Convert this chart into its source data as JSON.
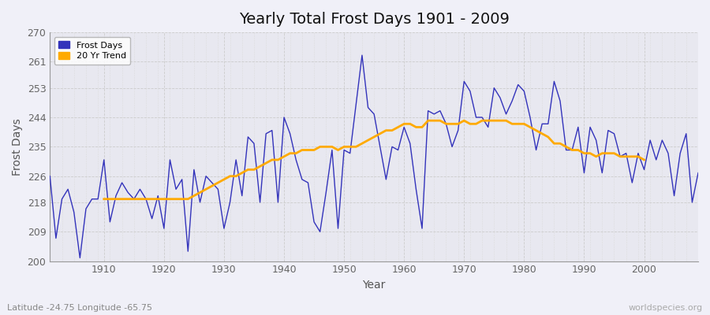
{
  "title": "Yearly Total Frost Days 1901 - 2009",
  "xlabel": "Year",
  "ylabel": "Frost Days",
  "subtitle": "Latitude -24.75 Longitude -65.75",
  "watermark": "worldspecies.org",
  "ylim": [
    200,
    270
  ],
  "yticks": [
    200,
    209,
    218,
    226,
    235,
    244,
    253,
    261,
    270
  ],
  "xlim": [
    1901,
    2009
  ],
  "background_color": "#f0f0f8",
  "plot_bg_color": "#e8e8f0",
  "line_color": "#3333bb",
  "trend_color": "#ffaa00",
  "years": [
    1901,
    1902,
    1903,
    1904,
    1905,
    1906,
    1907,
    1908,
    1909,
    1910,
    1911,
    1912,
    1913,
    1914,
    1915,
    1916,
    1917,
    1918,
    1919,
    1920,
    1921,
    1922,
    1923,
    1924,
    1925,
    1926,
    1927,
    1928,
    1929,
    1930,
    1931,
    1932,
    1933,
    1934,
    1935,
    1936,
    1937,
    1938,
    1939,
    1940,
    1941,
    1942,
    1943,
    1944,
    1945,
    1946,
    1947,
    1948,
    1949,
    1950,
    1951,
    1952,
    1953,
    1954,
    1955,
    1956,
    1957,
    1958,
    1959,
    1960,
    1961,
    1962,
    1963,
    1964,
    1965,
    1966,
    1967,
    1968,
    1969,
    1970,
    1971,
    1972,
    1973,
    1974,
    1975,
    1976,
    1977,
    1978,
    1979,
    1980,
    1981,
    1982,
    1983,
    1984,
    1985,
    1986,
    1987,
    1988,
    1989,
    1990,
    1991,
    1992,
    1993,
    1994,
    1995,
    1996,
    1997,
    1998,
    1999,
    2000,
    2001,
    2002,
    2003,
    2004,
    2005,
    2006,
    2007,
    2008,
    2009
  ],
  "frost_days": [
    226,
    207,
    219,
    222,
    215,
    201,
    216,
    219,
    219,
    231,
    212,
    220,
    224,
    221,
    219,
    222,
    219,
    213,
    220,
    210,
    231,
    222,
    225,
    203,
    228,
    218,
    226,
    224,
    222,
    210,
    218,
    231,
    220,
    238,
    236,
    218,
    239,
    240,
    218,
    244,
    239,
    231,
    225,
    224,
    212,
    209,
    221,
    234,
    210,
    234,
    233,
    248,
    263,
    247,
    245,
    235,
    225,
    235,
    234,
    241,
    236,
    222,
    210,
    246,
    245,
    246,
    242,
    235,
    240,
    255,
    252,
    244,
    244,
    241,
    253,
    250,
    245,
    249,
    254,
    252,
    244,
    234,
    242,
    242,
    255,
    249,
    234,
    234,
    241,
    227,
    241,
    237,
    227,
    240,
    239,
    232,
    233,
    224,
    233,
    228,
    237,
    231,
    237,
    233,
    220,
    233,
    239,
    218,
    227
  ],
  "trend_years": [
    1910,
    1911,
    1912,
    1913,
    1914,
    1915,
    1916,
    1917,
    1918,
    1919,
    1920,
    1921,
    1922,
    1923,
    1924,
    1925,
    1926,
    1927,
    1928,
    1929,
    1930,
    1931,
    1932,
    1933,
    1934,
    1935,
    1936,
    1937,
    1938,
    1939,
    1940,
    1941,
    1942,
    1943,
    1944,
    1945,
    1946,
    1947,
    1948,
    1949,
    1950,
    1951,
    1952,
    1953,
    1954,
    1955,
    1956,
    1957,
    1958,
    1959,
    1960,
    1961,
    1962,
    1963,
    1964,
    1965,
    1966,
    1967,
    1968,
    1969,
    1970,
    1971,
    1972,
    1973,
    1974,
    1975,
    1976,
    1977,
    1978,
    1979,
    1980,
    1981,
    1982,
    1983,
    1984,
    1985,
    1986,
    1987,
    1988,
    1989,
    1990,
    1991,
    1992,
    1993,
    1994,
    1995,
    1996,
    1997,
    1998,
    1999,
    2000
  ],
  "trend_values": [
    219,
    219,
    219,
    219,
    219,
    219,
    219,
    219,
    219,
    219,
    219,
    219,
    219,
    219,
    219,
    220,
    221,
    222,
    223,
    224,
    225,
    226,
    226,
    227,
    228,
    228,
    229,
    230,
    231,
    231,
    232,
    233,
    233,
    234,
    234,
    234,
    235,
    235,
    235,
    234,
    235,
    235,
    235,
    236,
    237,
    238,
    239,
    240,
    240,
    241,
    242,
    242,
    241,
    241,
    243,
    243,
    243,
    242,
    242,
    242,
    243,
    242,
    242,
    243,
    243,
    243,
    243,
    243,
    242,
    242,
    242,
    241,
    240,
    239,
    238,
    236,
    236,
    235,
    234,
    234,
    233,
    233,
    232,
    233,
    233,
    233,
    232,
    232,
    232,
    232,
    231
  ]
}
